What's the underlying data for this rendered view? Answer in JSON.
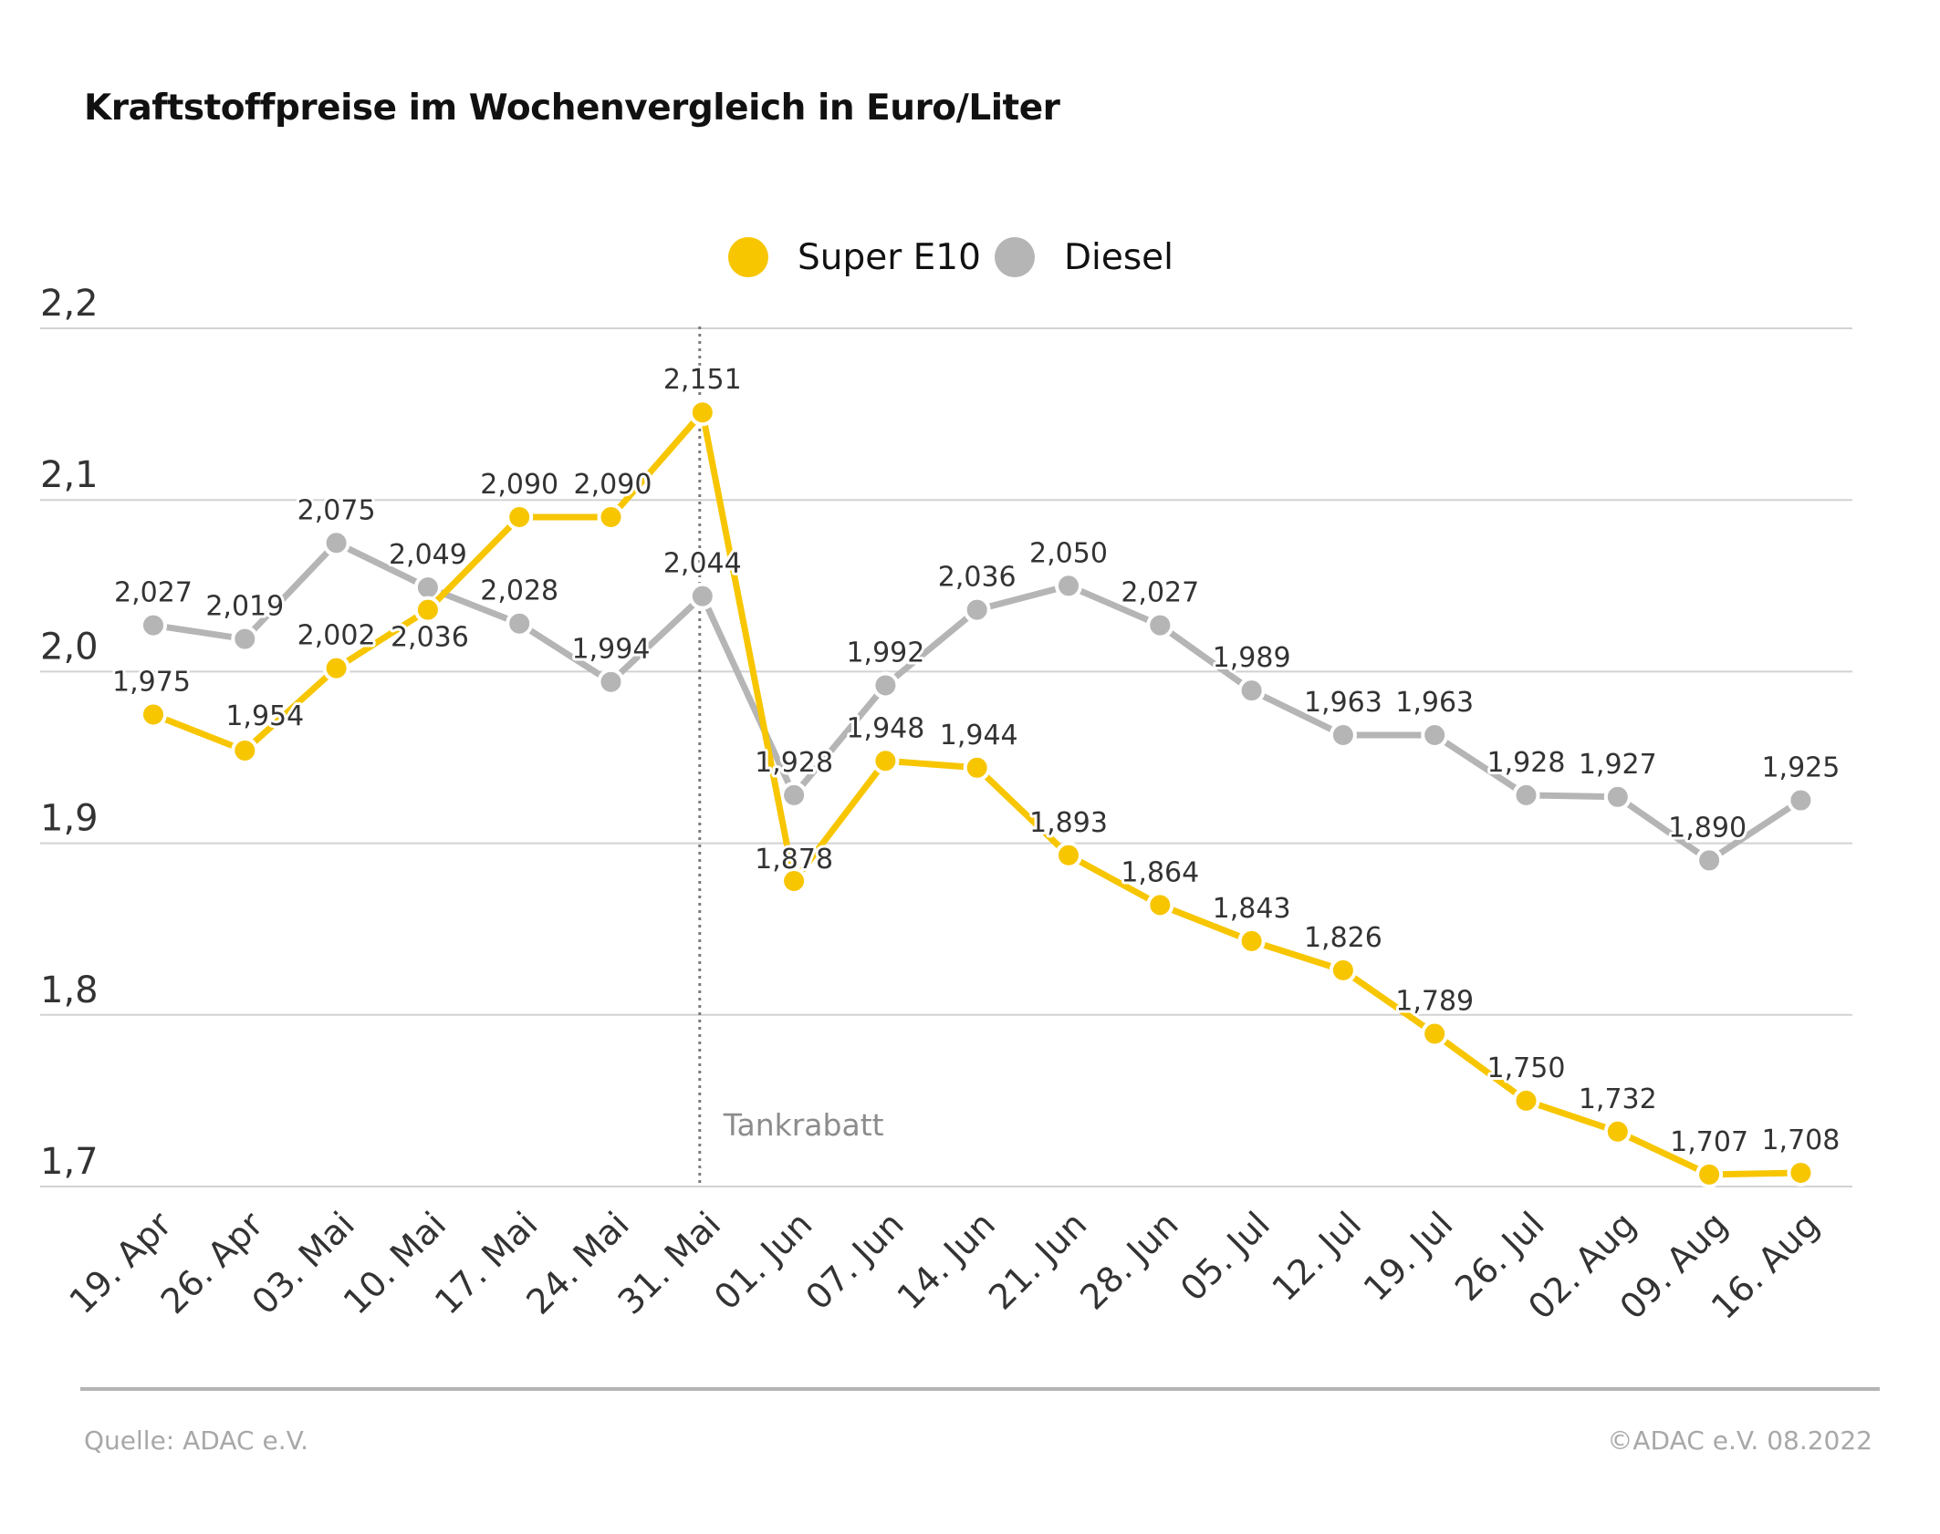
{
  "title": "Kraftstoffpreise im Wochenvergleich in Euro/Liter",
  "source": "Quelle: ADAC e.V.",
  "copyright": "©ADAC e.V.  08.2022",
  "annotation": "Tankrabatt",
  "colors": {
    "super": "#f7c600",
    "diesel": "#b5b5b5",
    "grid": "#d2d2d2",
    "marker": "#7a7a7a",
    "label": "#333333"
  },
  "chart_data": {
    "type": "line",
    "title": "Kraftstoffpreise im Wochenvergleich in Euro/Liter",
    "xlabel": "",
    "ylabel": "",
    "ylim": [
      1.7,
      2.2
    ],
    "yticks": [
      1.7,
      1.8,
      1.9,
      2.0,
      2.1,
      2.2
    ],
    "ytick_labels": [
      "1,7",
      "1,8",
      "1,9",
      "2,0",
      "2,1",
      "2,2"
    ],
    "grid": true,
    "legend_position": "top-center",
    "categories": [
      "19. Apr",
      "26. Apr",
      "03. Mai",
      "10. Mai",
      "17. Mai",
      "24. Mai",
      "31. Mai",
      "01. Jun",
      "07. Jun",
      "14. Jun",
      "21. Jun",
      "28. Jun",
      "05. Jul",
      "12. Jul",
      "19. Jul",
      "26. Jul",
      "02. Aug",
      "09. Aug",
      "16. Aug"
    ],
    "vertical_marker": {
      "category": "31. Mai",
      "label": "Tankrabatt"
    },
    "series": [
      {
        "name": "Super E10",
        "values": [
          1.975,
          1.954,
          2.002,
          2.036,
          2.09,
          2.09,
          2.151,
          1.878,
          1.948,
          1.944,
          1.893,
          1.864,
          1.843,
          1.826,
          1.789,
          1.75,
          1.732,
          1.707,
          1.708
        ],
        "labels": [
          "1,975",
          "1,954",
          "2,002",
          "2,036",
          "2,090",
          "2,090",
          "2,151",
          "1,878",
          "1,948",
          "1,944",
          "1,893",
          "1,864",
          "1,843",
          "1,826",
          "1,789",
          "1,750",
          "1,732",
          "1,707",
          "1,708"
        ]
      },
      {
        "name": "Diesel",
        "values": [
          2.027,
          2.019,
          2.075,
          2.049,
          2.028,
          1.994,
          2.044,
          1.928,
          1.992,
          2.036,
          2.05,
          2.027,
          1.989,
          1.963,
          1.963,
          1.928,
          1.927,
          1.89,
          1.925
        ],
        "labels": [
          "2,027",
          "2,019",
          "2,075",
          "2,049",
          "2,028",
          "1,994",
          "2,044",
          "1,928",
          "1,992",
          "2,036",
          "2,050",
          "2,027",
          "1,989",
          "1,963",
          "1,963",
          "1,928",
          "1,927",
          "1,890",
          "1,925"
        ]
      }
    ]
  }
}
